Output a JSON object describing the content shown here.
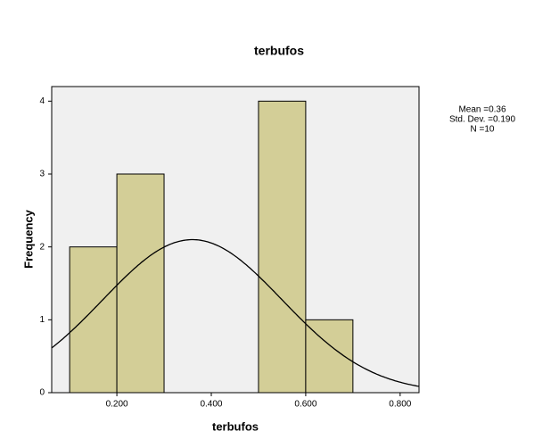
{
  "chart_data": {
    "type": "histogram",
    "title": "terbufos",
    "x_label": "terbufos",
    "y_label": "Frequency",
    "bins": [
      0.1,
      0.2,
      0.3,
      0.4,
      0.5,
      0.6,
      0.7
    ],
    "values": [
      2,
      3,
      0,
      0,
      4,
      1
    ],
    "color": "#d3ce97",
    "xlim": [
      0.062,
      0.84
    ],
    "ylim": [
      0,
      4.2
    ],
    "xticks": [
      {
        "value": 0.2,
        "label": "0.200"
      },
      {
        "value": 0.4,
        "label": "0.400"
      },
      {
        "value": 0.6,
        "label": "0.600"
      },
      {
        "value": 0.8,
        "label": "0.800"
      }
    ],
    "yticks": [
      0,
      1,
      2,
      3,
      4
    ],
    "stats": [
      {
        "value": 0.36,
        "label": "Mean =0.36"
      },
      {
        "value": 0.19,
        "label": "Std. Dev. =0.190"
      },
      {
        "value": 10,
        "label": "N =10"
      }
    ],
    "normal_curve": true
  }
}
